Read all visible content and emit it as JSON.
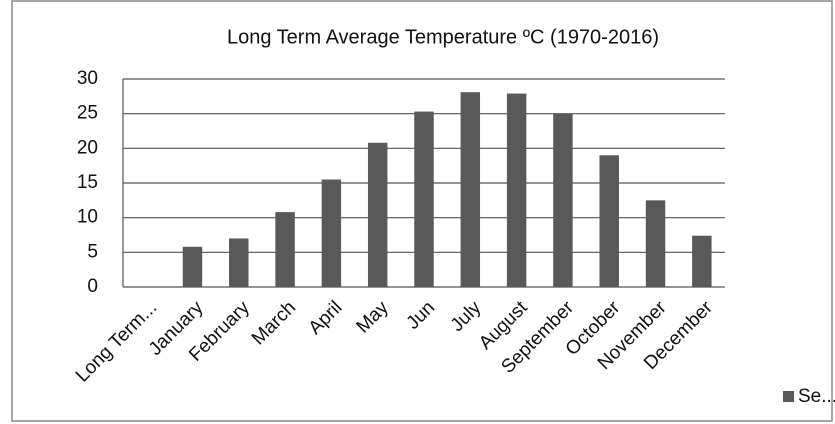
{
  "chart_data": {
    "type": "bar",
    "title": "Long Term Average Temperature ºC  (1970-2016)",
    "categories": [
      "Long Term...",
      "January",
      "February",
      "March",
      "April",
      "May",
      "Jun",
      "July",
      "August",
      "September",
      "October",
      "November",
      "December"
    ],
    "series": [
      {
        "name": "Se...",
        "color": "#595959",
        "values": [
          null,
          5.8,
          7,
          10.8,
          15.5,
          20.8,
          25.3,
          28.1,
          27.9,
          25,
          19,
          12.5,
          7.4
        ]
      }
    ],
    "ylim": [
      0,
      30
    ],
    "yticks": [
      0,
      5,
      10,
      15,
      20,
      25,
      30
    ],
    "grid": true,
    "legend": "bottom-right"
  }
}
